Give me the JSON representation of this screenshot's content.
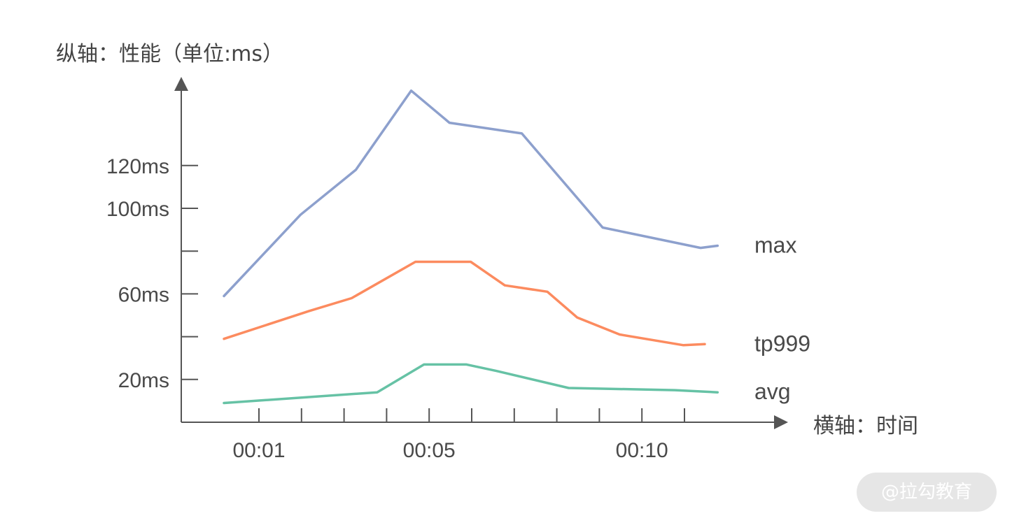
{
  "y_axis_title": "纵轴：性能（单位:ms）",
  "x_axis_title": "横轴：时间",
  "watermark": "@拉勾教育",
  "chart_data": {
    "type": "line",
    "x": [
      0,
      1,
      2,
      3,
      4,
      5,
      6,
      7,
      8,
      9,
      10,
      11
    ],
    "xticks": [
      {
        "value": 1,
        "label": "00:01"
      },
      {
        "value": 5,
        "label": "00:05"
      },
      {
        "value": 10,
        "label": "00:10"
      }
    ],
    "yticks": [
      {
        "value": 20,
        "label": "20ms"
      },
      {
        "value": 40,
        "label": ""
      },
      {
        "value": 60,
        "label": "60ms"
      },
      {
        "value": 80,
        "label": ""
      },
      {
        "value": 100,
        "label": "100ms"
      },
      {
        "value": 120,
        "label": "120ms"
      }
    ],
    "xlim": [
      -0.85,
      11.2
    ],
    "ylim": [
      0,
      158
    ],
    "series": [
      {
        "name": "max",
        "color": "#8da0cd",
        "points": [
          [
            0,
            59
          ],
          [
            1.8,
            97
          ],
          [
            3.1,
            118
          ],
          [
            4.4,
            155
          ],
          [
            5.3,
            140
          ],
          [
            7.0,
            135
          ],
          [
            8.9,
            91
          ],
          [
            11.2,
            81.5
          ],
          [
            11.6,
            82.5
          ]
        ]
      },
      {
        "name": "tp999",
        "color": "#fc8b5f",
        "points": [
          [
            0,
            39
          ],
          [
            2.0,
            52
          ],
          [
            3.0,
            58
          ],
          [
            4.5,
            75
          ],
          [
            5.8,
            75
          ],
          [
            6.6,
            64
          ],
          [
            7.6,
            61
          ],
          [
            8.3,
            49
          ],
          [
            9.3,
            41
          ],
          [
            10.8,
            36
          ],
          [
            11.3,
            36.5
          ]
        ]
      },
      {
        "name": "avg",
        "color": "#66c2a5",
        "points": [
          [
            0,
            9
          ],
          [
            3.6,
            14
          ],
          [
            4.7,
            27
          ],
          [
            5.7,
            27
          ],
          [
            6.4,
            24
          ],
          [
            8.1,
            16
          ],
          [
            10.6,
            15
          ],
          [
            11.6,
            14
          ]
        ]
      }
    ]
  }
}
